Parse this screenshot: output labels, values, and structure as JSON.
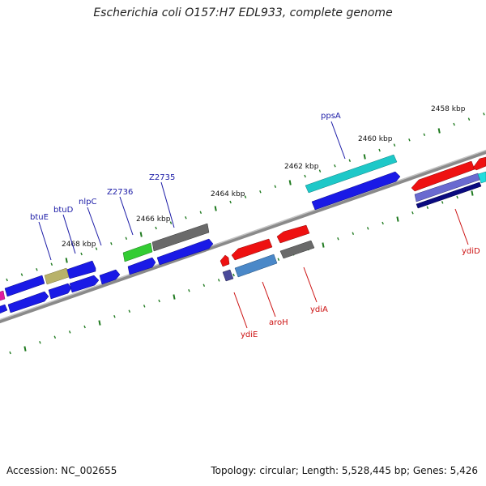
{
  "title": "Escherichia coli O157:H7 EDL933, complete genome",
  "footer": {
    "accession": "Accession: NC_002655",
    "summary": "Topology: circular; Length: 5,528,445 bp; Genes: 5,426"
  },
  "colors": {
    "backbone": "#8a8a8a",
    "tick": "#1f7a1f",
    "label_forward": "#1a1aa6",
    "label_reverse": "#cc1111"
  },
  "ticks": [
    {
      "label": "2458 kbp"
    },
    {
      "label": "2460 kbp"
    },
    {
      "label": "2462 kbp"
    },
    {
      "label": "2464 kbp"
    },
    {
      "label": "2466 kbp"
    },
    {
      "label": "2468 kbp"
    }
  ],
  "gene_labels": [
    {
      "name": "ppsA",
      "strand": "forward"
    },
    {
      "name": "Z2735",
      "strand": "forward"
    },
    {
      "name": "Z2736",
      "strand": "forward"
    },
    {
      "name": "nlpC",
      "strand": "forward"
    },
    {
      "name": "btuD",
      "strand": "forward"
    },
    {
      "name": "btuE",
      "strand": "forward"
    },
    {
      "name": "ydiD",
      "strand": "reverse"
    },
    {
      "name": "ydiA",
      "strand": "reverse"
    },
    {
      "name": "aroH",
      "strand": "reverse"
    },
    {
      "name": "ydiE",
      "strand": "reverse"
    }
  ]
}
